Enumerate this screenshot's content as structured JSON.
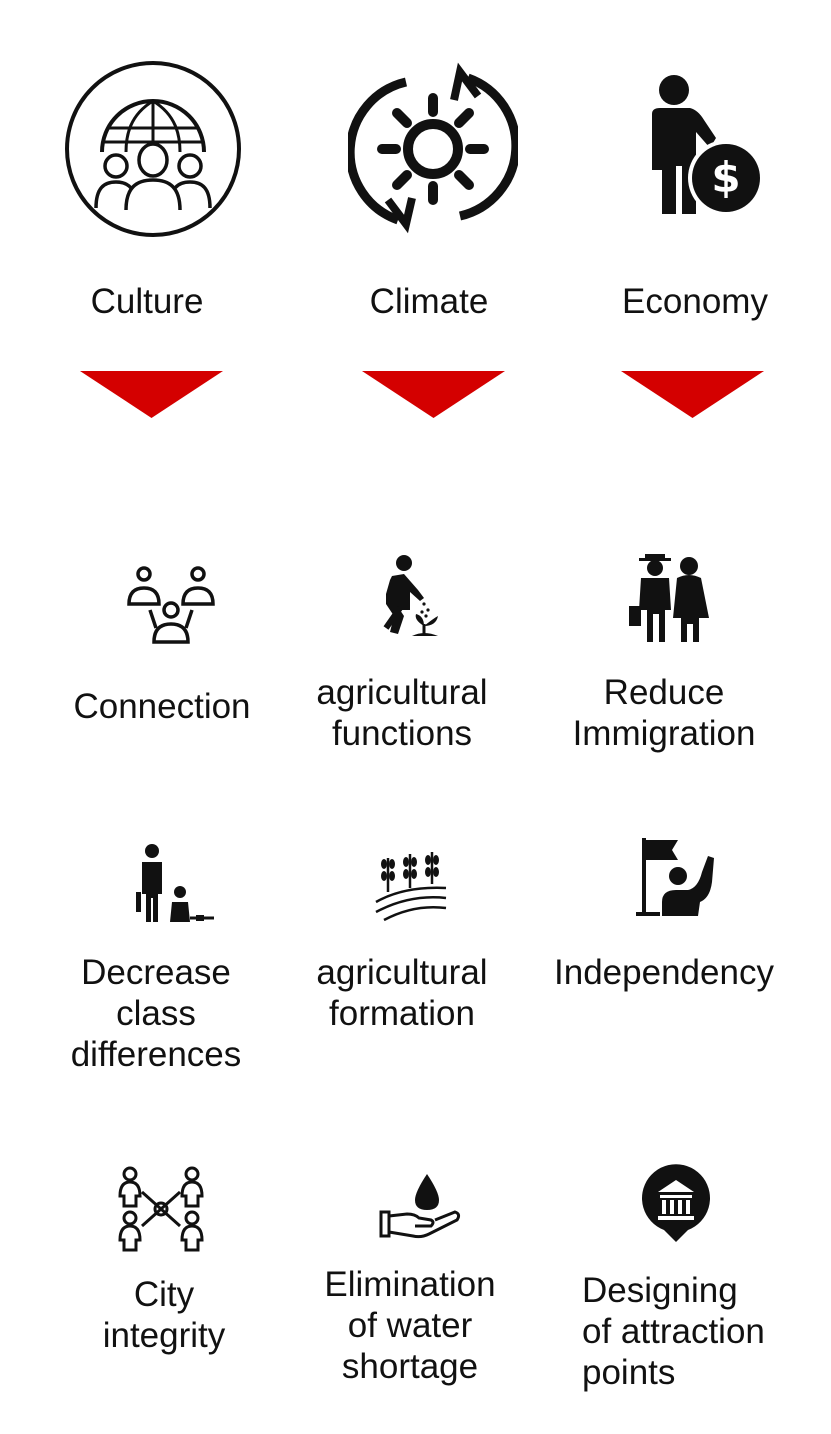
{
  "colors": {
    "accent": "#d40000",
    "ink": "#111111",
    "background": "#ffffff"
  },
  "categories": [
    {
      "label": "Culture",
      "icon": "globe-people-icon"
    },
    {
      "label": "Climate",
      "icon": "sun-cycle-icon"
    },
    {
      "label": "Economy",
      "icon": "businessman-dollar-icon"
    }
  ],
  "outcomes": {
    "culture": [
      {
        "lines": [
          "Connection"
        ],
        "icon": "network-people-icon"
      },
      {
        "lines": [
          "Decrease",
          "class",
          "differences"
        ],
        "icon": "adult-child-icon"
      },
      {
        "lines": [
          "City",
          "integrity"
        ],
        "icon": "linked-people-icon"
      }
    ],
    "climate": [
      {
        "lines": [
          "agricultural",
          "functions"
        ],
        "icon": "gardener-icon"
      },
      {
        "lines": [
          "agricultural",
          "formation"
        ],
        "icon": "crop-field-icon"
      },
      {
        "lines": [
          "Elimination",
          "of water",
          "shortage"
        ],
        "icon": "water-hand-icon"
      }
    ],
    "economy": [
      {
        "lines": [
          "Reduce",
          "Immigration"
        ],
        "icon": "elderly-couple-icon"
      },
      {
        "lines": [
          "Independency"
        ],
        "icon": "flag-person-icon"
      },
      {
        "lines": [
          "Designing",
          "of attraction",
          "points"
        ],
        "icon": "landmark-pin-icon"
      }
    ]
  }
}
